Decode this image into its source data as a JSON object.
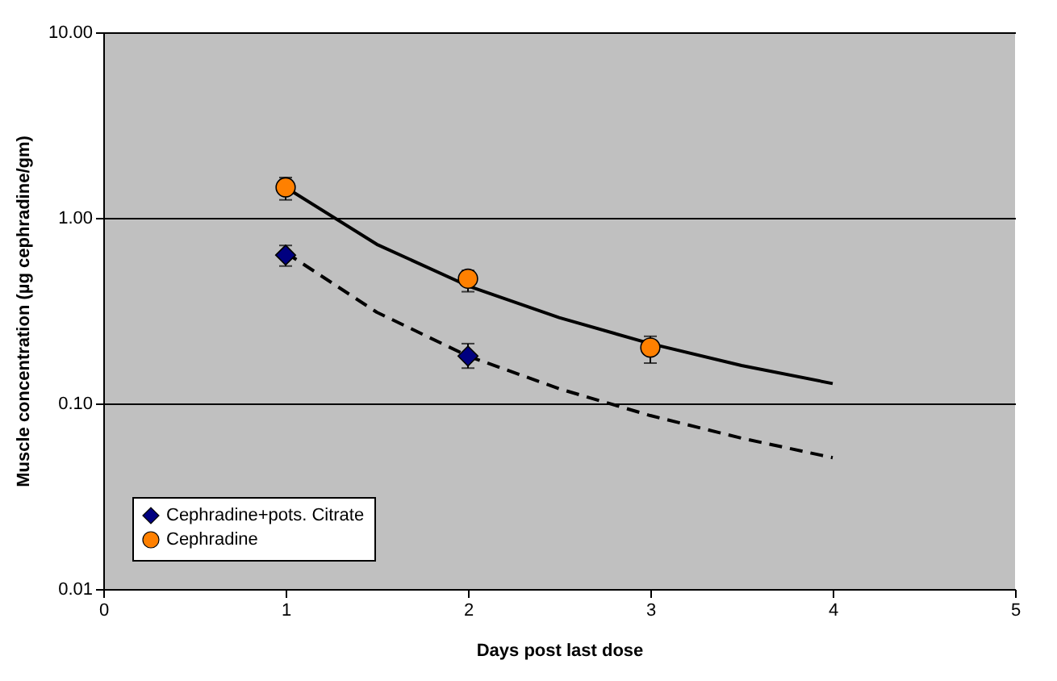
{
  "chart_data": {
    "type": "scatter",
    "xlabel": "Days post last dose",
    "ylabel": "Muscle concentration (µg cephradine/gm)",
    "log": "y",
    "grid": "y",
    "legend": "bottom left",
    "xlim": [
      0,
      5
    ],
    "xticks": [
      0,
      1,
      2,
      3,
      4,
      5
    ],
    "ylim": [
      0.01,
      10
    ],
    "yticks": [
      {
        "value": 0.01,
        "label": "0.01"
      },
      {
        "value": 0.1,
        "label": "0.10"
      },
      {
        "value": 1,
        "label": "1.00"
      },
      {
        "value": 10,
        "label": "10.00"
      }
    ],
    "series": [
      {
        "name": "Cephradine+pots. Citrate",
        "marker": "diamond",
        "color": "#000080",
        "x": [
          1,
          2
        ],
        "values": [
          0.63,
          0.18
        ],
        "errors": [
          [
            0.55,
            0.71
          ],
          [
            0.155,
            0.21
          ]
        ]
      },
      {
        "name": "Cephradine",
        "marker": "circle",
        "color": "#ff8000",
        "x": [
          1,
          2,
          3
        ],
        "values": [
          1.46,
          0.47,
          0.2
        ],
        "errors": [
          [
            1.25,
            1.65
          ],
          [
            0.4,
            0.52
          ],
          [
            0.165,
            0.23
          ]
        ]
      },
      {
        "type": "line",
        "marker": "none",
        "line_style": "dashed",
        "color": "#000000",
        "x": [
          1,
          1.5,
          2,
          2.5,
          3,
          3.5,
          4
        ],
        "values": [
          0.65,
          0.31,
          0.18,
          0.12,
          0.086,
          0.065,
          0.051
        ]
      },
      {
        "type": "line",
        "marker": "none",
        "line_style": "solid",
        "color": "#000000",
        "x": [
          1,
          1.5,
          2,
          2.5,
          3,
          3.5,
          4
        ],
        "values": [
          1.46,
          0.72,
          0.43,
          0.29,
          0.21,
          0.16,
          0.128
        ]
      }
    ]
  }
}
